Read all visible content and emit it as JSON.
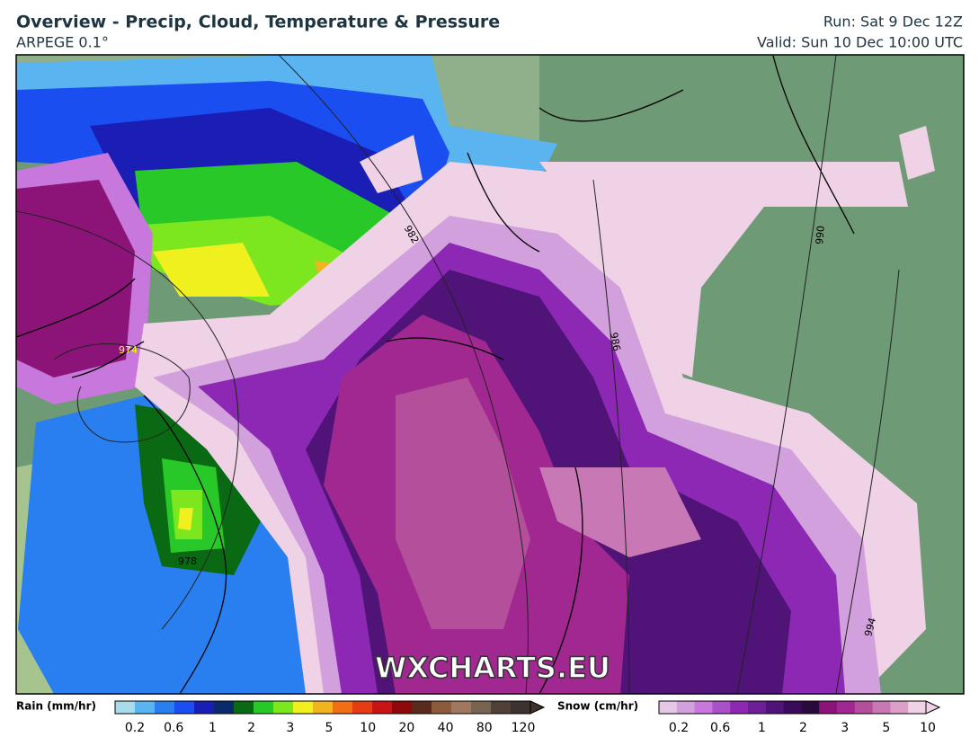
{
  "header": {
    "title": "Overview - Precip, Cloud, Temperature & Pressure",
    "subtitle": "ARPEGE 0.1°",
    "run": "Run: Sat 9 Dec 12Z",
    "valid": "Valid: Sun 10 Dec 10:00 UTC"
  },
  "map": {
    "watermark": "WXCHARTS.EU",
    "isobars": [
      "982",
      "974",
      "978",
      "986",
      "990",
      "994"
    ]
  },
  "legend": {
    "rain": {
      "label": "Rain (mm/hr)",
      "ticks": [
        0.2,
        0.6,
        1,
        2,
        3,
        5,
        10,
        20,
        40,
        80,
        120
      ],
      "colors": [
        "#a8dcea",
        "#5ab4f0",
        "#2a7ff0",
        "#1a4ef0",
        "#1a1eb4",
        "#0a2a6a",
        "#0a6a14",
        "#28c828",
        "#7ce61e",
        "#f0f01e",
        "#f0b41e",
        "#f06e14",
        "#e63c14",
        "#c81414",
        "#8c0a0a",
        "#5a2a1e",
        "#8c5a3c",
        "#a07860",
        "#786450",
        "#504038",
        "#3c3230"
      ]
    },
    "snow": {
      "label": "Snow (cm/hr)",
      "ticks": [
        0.2,
        0.6,
        1,
        2,
        3,
        5,
        10
      ],
      "colors": [
        "#e6c8e6",
        "#d2a0dc",
        "#c878dc",
        "#aa50c8",
        "#8c28b4",
        "#6e1e96",
        "#501478",
        "#3c0a5a",
        "#2a0a3c",
        "#8c1478",
        "#a02890",
        "#b4509b",
        "#c878b4",
        "#dca0c8",
        "#f0d2e6"
      ]
    }
  }
}
